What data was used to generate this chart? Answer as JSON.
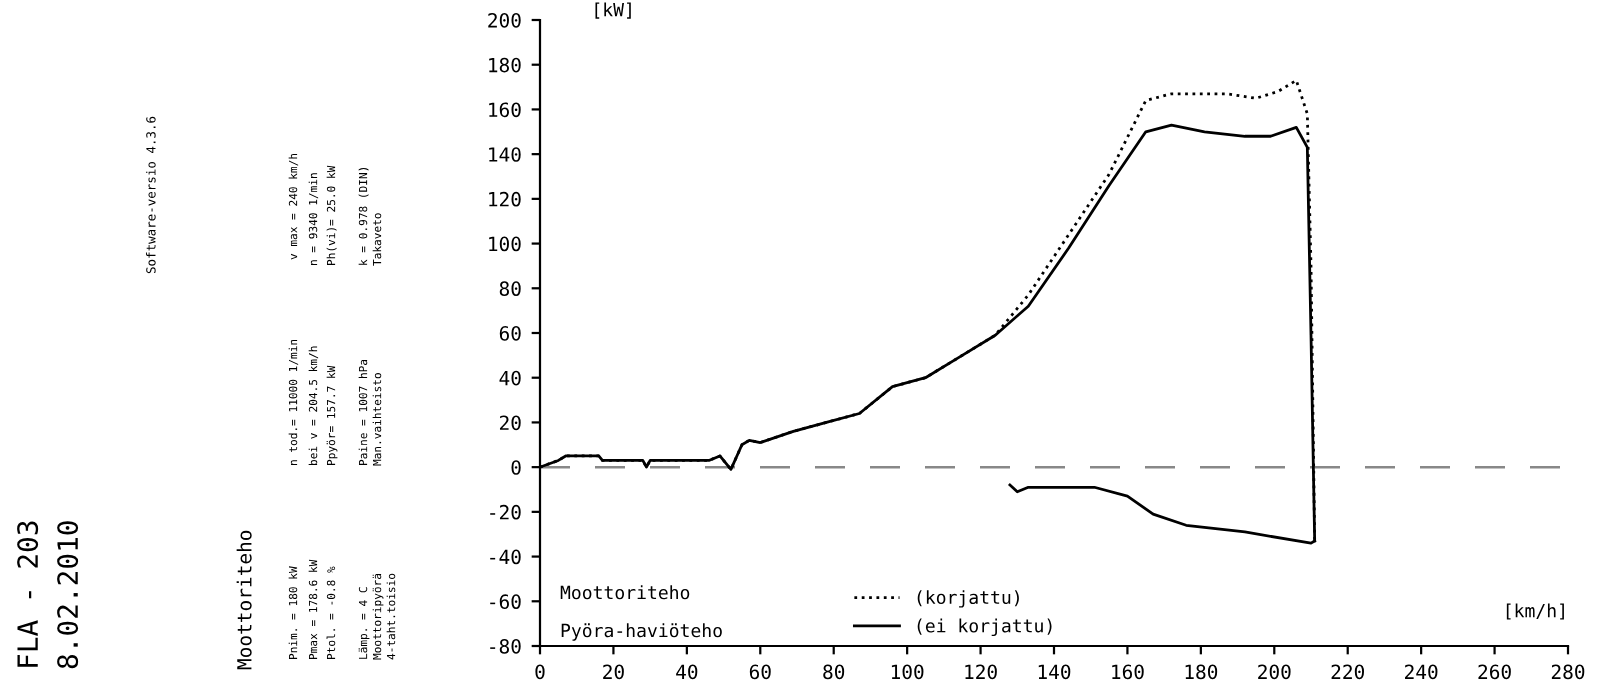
{
  "chart_data": {
    "type": "line",
    "xlabel": "[km/h]",
    "ylabel": "[kW]",
    "xlim": [
      0,
      280
    ],
    "xticks": [
      0,
      20,
      40,
      60,
      80,
      100,
      120,
      140,
      160,
      180,
      200,
      220,
      240,
      260,
      280
    ],
    "ylim": [
      -80,
      200
    ],
    "yticks": [
      -80,
      -60,
      -40,
      -20,
      0,
      20,
      40,
      60,
      80,
      100,
      120,
      140,
      160,
      180,
      200
    ],
    "grid": false,
    "legend": "bottom left",
    "series": [
      {
        "name": "(korjattu)",
        "color": "#000000",
        "line_style": "dotted",
        "x": [
          0,
          5,
          7,
          12,
          16,
          17,
          28,
          29,
          30,
          36,
          46,
          49,
          52,
          55,
          57,
          60,
          69,
          78,
          87,
          96,
          105,
          114,
          124,
          133,
          144,
          155,
          165,
          172,
          187,
          195,
          201,
          206,
          209,
          210,
          211
        ],
        "values": [
          0,
          3,
          5,
          5,
          5,
          3,
          3,
          0,
          3,
          3,
          3,
          5,
          -1,
          10,
          12,
          11,
          16,
          20,
          24,
          36,
          40,
          49,
          59,
          77,
          104,
          131,
          164,
          167,
          167,
          165,
          168,
          173,
          158,
          90,
          -33
        ]
      },
      {
        "name": "(ei korjattu)",
        "color": "#000000",
        "line_style": "solid",
        "x": [
          0,
          5,
          7,
          12,
          16,
          17,
          28,
          29,
          30,
          36,
          46,
          49,
          52,
          55,
          57,
          60,
          69,
          78,
          87,
          96,
          105,
          114,
          124,
          133,
          144,
          155,
          165,
          172,
          181,
          192,
          199,
          206,
          209,
          210,
          211
        ],
        "values": [
          0,
          3,
          5,
          5,
          5,
          3,
          3,
          0,
          3,
          3,
          3,
          5,
          -1,
          10,
          12,
          11,
          16,
          20,
          24,
          36,
          40,
          49,
          59,
          72,
          98,
          126,
          150,
          153,
          150,
          148,
          148,
          152,
          143,
          59,
          -33
        ]
      },
      {
        "color": "#000000",
        "line_style": "solid",
        "x": [
          128,
          130,
          133,
          151,
          160,
          167,
          176,
          192,
          210,
          211
        ],
        "values": [
          -8,
          -11,
          -9,
          -9,
          -13,
          -21,
          -26,
          -29,
          -34,
          -33
        ]
      }
    ],
    "ref_lines": [
      {
        "axis": "y",
        "value": 0,
        "color": "#888888",
        "line_style": "dashed"
      }
    ],
    "annotations": [
      "FLA - 203",
      "8.02.2010",
      "Software-versio 4.3.6",
      "Moottoriteho",
      "Pnim. = 180 kW",
      "n tod.= 11000 1/min",
      "v max = 240 km/h",
      "Pmax = 178.6 kW",
      "bei v = 204.5 km/h",
      "n = 9340 1/min",
      "Ptol. = -0.8 %",
      "Ppyör= 157.7 kW",
      "Ph(vi)= 25.0 kW",
      "Lämp. = 4 C",
      "Paine = 1007 hPa",
      "k = 0.978 (DIN)",
      "Moottoripyörä",
      "Man.vaihteisto",
      "Takaveto",
      "4-taht.toisio",
      "Moottoriteho",
      "Pyöra-haviöteho"
    ]
  }
}
